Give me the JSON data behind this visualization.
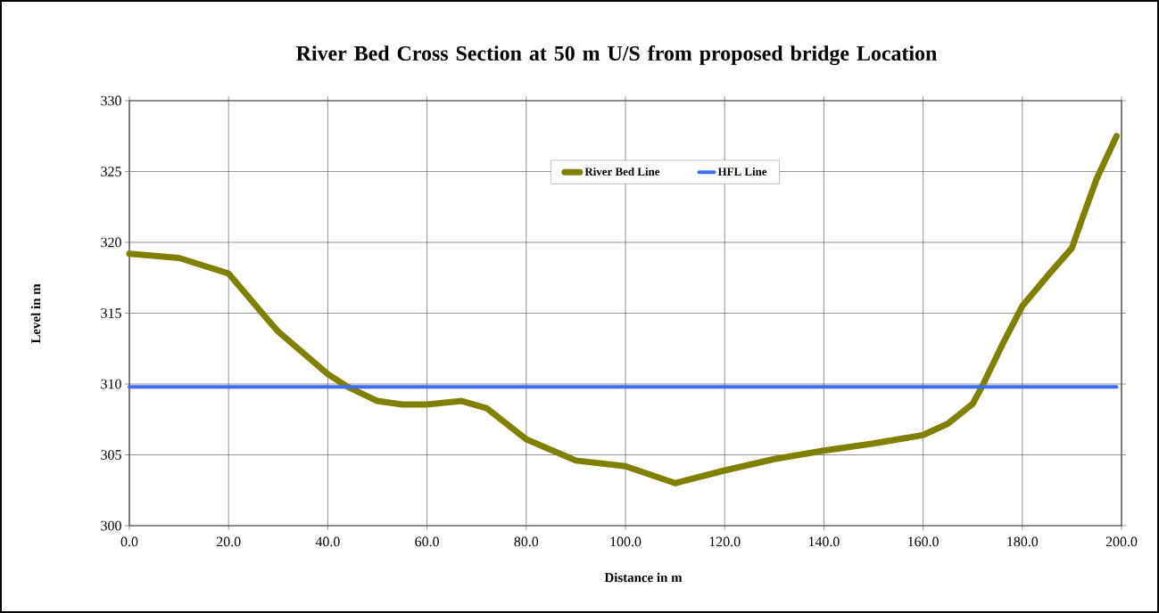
{
  "chart_data": {
    "type": "line",
    "title": "River Bed Cross Section at  50 m U/S from proposed bridge Location",
    "xlabel": "Distance in m",
    "ylabel": "Level in m",
    "xlim": [
      0,
      200
    ],
    "ylim": [
      300,
      330
    ],
    "xticks": [
      {
        "value": 0,
        "label": "0.0"
      },
      {
        "value": 20,
        "label": "20.0"
      },
      {
        "value": 40,
        "label": "40.0"
      },
      {
        "value": 60,
        "label": "60.0"
      },
      {
        "value": 80,
        "label": "80.0"
      },
      {
        "value": 100,
        "label": "100.0"
      },
      {
        "value": 120,
        "label": "120.0"
      },
      {
        "value": 140,
        "label": "140.0"
      },
      {
        "value": 160,
        "label": "160.0"
      },
      {
        "value": 180,
        "label": "180.0"
      },
      {
        "value": 200,
        "label": "200.0"
      }
    ],
    "yticks": [
      300,
      305,
      310,
      315,
      320,
      325,
      330
    ],
    "grid": true,
    "legend": "top",
    "marker": "none",
    "line_style": "solid",
    "series": [
      {
        "name": "River Bed Line",
        "color": "#808000",
        "x": [
          0,
          10,
          20,
          28,
          30,
          40,
          44,
          50,
          55,
          60,
          67,
          72,
          80,
          90,
          100,
          110,
          120,
          130,
          140,
          150,
          160,
          165,
          170,
          172,
          176,
          180,
          185,
          190,
          192,
          195,
          199
        ],
        "values": [
          319.2,
          318.9,
          317.8,
          314.5,
          313.7,
          310.7,
          309.8,
          308.8,
          308.55,
          308.55,
          308.8,
          308.3,
          306.1,
          304.6,
          304.2,
          303.0,
          303.9,
          304.7,
          305.3,
          305.8,
          306.4,
          307.2,
          308.6,
          309.9,
          312.8,
          315.5,
          317.6,
          319.6,
          321.6,
          324.5,
          327.5
        ]
      },
      {
        "name": "HFL Line",
        "color": "#3f6df5",
        "x": [
          0,
          199
        ],
        "values": [
          309.8,
          309.8
        ]
      }
    ]
  }
}
